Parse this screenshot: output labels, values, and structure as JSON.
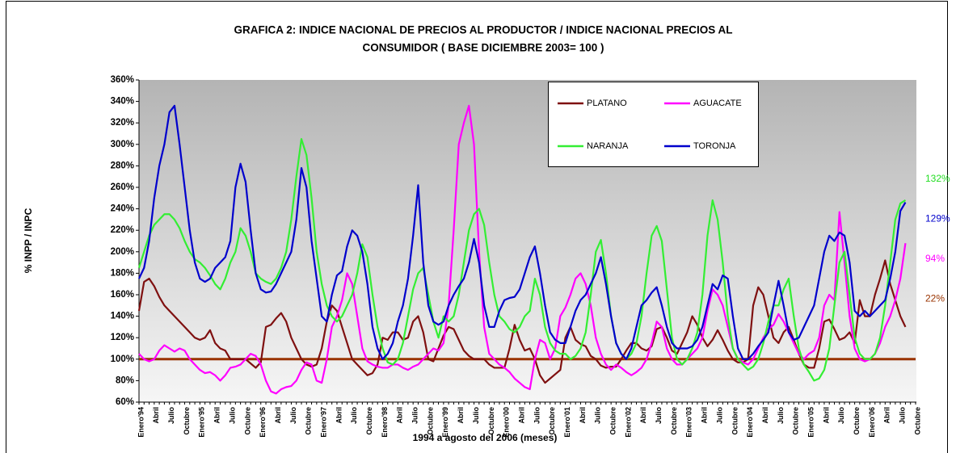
{
  "chart_data": {
    "type": "line",
    "title": [
      "GRAFICA 2: INDICE NACIONAL DE PRECIOS AL PRODUCTOR /  INDICE NACIONAL PRECIOS AL",
      "CONSUMIDOR ( BASE DICIEMBRE 2003= 100 )"
    ],
    "xlabel": "1994 a agosto del 2006 (meses)",
    "ylabel": "% INPP / INPC",
    "ylim": [
      60,
      360
    ],
    "yticks": [
      {
        "value": 60,
        "label": "60%"
      },
      {
        "value": 80,
        "label": "80%"
      },
      {
        "value": 100,
        "label": "100%"
      },
      {
        "value": 120,
        "label": "120%"
      },
      {
        "value": 140,
        "label": "140%"
      },
      {
        "value": 160,
        "label": "160%"
      },
      {
        "value": 180,
        "label": "180%"
      },
      {
        "value": 200,
        "label": "200%"
      },
      {
        "value": 220,
        "label": "220%"
      },
      {
        "value": 240,
        "label": "240%"
      },
      {
        "value": 260,
        "label": "260%"
      },
      {
        "value": 280,
        "label": "280%"
      },
      {
        "value": 300,
        "label": "300%"
      },
      {
        "value": 320,
        "label": "320%"
      },
      {
        "value": 340,
        "label": "340%"
      },
      {
        "value": 360,
        "label": "360%"
      }
    ],
    "categories": [
      "Enero'94",
      null,
      null,
      "Abril",
      null,
      null,
      "Julio",
      null,
      null,
      "Octubre",
      null,
      null,
      "Enero'95",
      null,
      null,
      "Abril",
      null,
      null,
      "Julio",
      null,
      null,
      "Octubre",
      null,
      null,
      "Enero'96",
      null,
      null,
      "Abril",
      null,
      null,
      "Julio",
      null,
      null,
      "Octubre",
      null,
      null,
      "Enero'97",
      null,
      null,
      "Abril",
      null,
      null,
      "Julio",
      null,
      null,
      "Octubre",
      null,
      null,
      "Enero'98",
      null,
      null,
      "Abril",
      null,
      null,
      "Julio",
      null,
      null,
      "Octubre",
      null,
      null,
      "Enero'99",
      null,
      null,
      "Abril",
      null,
      null,
      "Julio",
      null,
      null,
      "Octubre",
      null,
      null,
      "Enero'00",
      null,
      null,
      "Abril",
      null,
      null,
      "Julio",
      null,
      null,
      "Octubre",
      null,
      null,
      "Enero'01",
      null,
      null,
      "Abril",
      null,
      null,
      "Julio",
      null,
      null,
      "Octubre",
      null,
      null,
      "Enero'02",
      null,
      null,
      "Abril",
      null,
      null,
      "Julio",
      null,
      null,
      "Octubre",
      null,
      null,
      "Enero'03",
      null,
      null,
      "Abril",
      null,
      null,
      "Julio",
      null,
      null,
      "Octubre",
      null,
      null,
      "Enero'04",
      null,
      null,
      "Abril",
      null,
      null,
      "Julio",
      null,
      null,
      "Octubre",
      null,
      null,
      "Enero'05",
      null,
      null,
      "Abril",
      null,
      null,
      "Julio",
      null,
      null,
      "Octubre",
      null,
      null,
      "Enero'06",
      null,
      null,
      "Abril",
      null,
      null,
      "Julio",
      null,
      null,
      "Octubre"
    ],
    "series": [
      {
        "name": "PLATANO",
        "color": "#7f1010",
        "values": [
          145,
          172,
          175,
          168,
          158,
          150,
          145,
          140,
          135,
          130,
          125,
          120,
          118,
          120,
          127,
          115,
          110,
          108,
          100,
          100,
          100,
          100,
          96,
          92,
          97,
          130,
          132,
          138,
          143,
          135,
          120,
          110,
          100,
          95,
          93,
          95,
          110,
          135,
          150,
          145,
          130,
          115,
          100,
          95,
          90,
          85,
          87,
          95,
          120,
          118,
          125,
          125,
          118,
          120,
          135,
          140,
          125,
          100,
          98,
          110,
          122,
          130,
          128,
          118,
          108,
          103,
          100,
          100,
          100,
          95,
          92,
          92,
          92,
          110,
          132,
          118,
          108,
          110,
          100,
          85,
          78,
          82,
          86,
          90,
          120,
          130,
          118,
          114,
          112,
          103,
          100,
          94,
          92,
          93,
          93,
          100,
          108,
          115,
          115,
          110,
          108,
          112,
          128,
          130,
          120,
          108,
          105,
          115,
          125,
          140,
          132,
          120,
          112,
          118,
          127,
          118,
          108,
          100,
          97,
          97,
          100,
          150,
          167,
          160,
          140,
          120,
          115,
          125,
          130,
          118,
          105,
          95,
          92,
          92,
          110,
          135,
          137,
          128,
          118,
          120,
          125,
          115,
          155,
          140,
          140,
          160,
          175,
          192,
          170,
          155,
          140,
          130,
          null,
          null
        ]
      },
      {
        "name": "AGUACATE",
        "color": "#ff00ff",
        "values": [
          105,
          100,
          98,
          100,
          108,
          113,
          110,
          107,
          110,
          108,
          100,
          95,
          90,
          87,
          88,
          85,
          80,
          85,
          92,
          93,
          95,
          100,
          105,
          103,
          95,
          80,
          70,
          68,
          72,
          74,
          75,
          80,
          90,
          97,
          95,
          80,
          78,
          100,
          130,
          140,
          155,
          180,
          170,
          140,
          110,
          98,
          95,
          93,
          92,
          92,
          95,
          95,
          92,
          90,
          93,
          95,
          100,
          105,
          110,
          108,
          115,
          150,
          220,
          300,
          320,
          336,
          300,
          200,
          130,
          105,
          100,
          95,
          92,
          88,
          82,
          78,
          74,
          72,
          100,
          118,
          115,
          100,
          110,
          140,
          148,
          160,
          175,
          180,
          170,
          150,
          120,
          105,
          95,
          90,
          95,
          92,
          88,
          85,
          88,
          92,
          100,
          115,
          135,
          130,
          110,
          100,
          95,
          95,
          100,
          105,
          110,
          120,
          145,
          165,
          160,
          150,
          130,
          110,
          100,
          97,
          95,
          100,
          110,
          120,
          128,
          132,
          142,
          135,
          125,
          115,
          105,
          100,
          105,
          108,
          120,
          150,
          160,
          155,
          237,
          190,
          140,
          110,
          100,
          98,
          100,
          105,
          115,
          130,
          140,
          155,
          175,
          208,
          null,
          null
        ]
      },
      {
        "name": "NARANJA",
        "color": "#33ee33",
        "values": [
          185,
          200,
          215,
          225,
          230,
          235,
          235,
          230,
          222,
          210,
          200,
          193,
          190,
          185,
          178,
          170,
          165,
          175,
          190,
          200,
          222,
          215,
          200,
          180,
          175,
          172,
          170,
          175,
          185,
          200,
          230,
          270,
          305,
          290,
          250,
          200,
          170,
          150,
          140,
          135,
          140,
          150,
          160,
          180,
          207,
          195,
          160,
          130,
          110,
          97,
          95,
          100,
          115,
          140,
          165,
          180,
          185,
          160,
          135,
          120,
          140,
          135,
          140,
          160,
          190,
          220,
          235,
          240,
          225,
          190,
          160,
          140,
          135,
          128,
          125,
          130,
          140,
          145,
          175,
          160,
          130,
          115,
          108,
          105,
          105,
          100,
          103,
          110,
          125,
          160,
          200,
          211,
          180,
          140,
          115,
          105,
          100,
          105,
          115,
          140,
          180,
          215,
          224,
          210,
          165,
          120,
          100,
          95,
          100,
          110,
          125,
          160,
          215,
          248,
          230,
          190,
          140,
          110,
          100,
          95,
          90,
          93,
          100,
          115,
          135,
          150,
          150,
          165,
          175,
          140,
          110,
          95,
          88,
          80,
          82,
          90,
          110,
          150,
          190,
          200,
          160,
          120,
          105,
          100,
          100,
          105,
          120,
          150,
          190,
          230,
          245,
          248,
          null,
          null
        ]
      },
      {
        "name": "TORONJA",
        "color": "#0000cc",
        "values": [
          175,
          185,
          210,
          250,
          280,
          300,
          330,
          336,
          300,
          260,
          220,
          190,
          175,
          172,
          175,
          185,
          190,
          195,
          210,
          260,
          282,
          265,
          220,
          180,
          165,
          162,
          163,
          170,
          180,
          190,
          200,
          230,
          278,
          260,
          210,
          175,
          140,
          135,
          160,
          178,
          182,
          205,
          220,
          215,
          200,
          170,
          130,
          110,
          100,
          105,
          115,
          135,
          150,
          175,
          215,
          262,
          190,
          150,
          135,
          132,
          135,
          150,
          160,
          168,
          175,
          190,
          212,
          190,
          150,
          130,
          130,
          145,
          155,
          157,
          158,
          165,
          180,
          195,
          205,
          180,
          150,
          125,
          118,
          115,
          115,
          130,
          145,
          155,
          160,
          170,
          180,
          195,
          170,
          140,
          115,
          105,
          100,
          110,
          130,
          150,
          155,
          162,
          167,
          150,
          130,
          115,
          110,
          110,
          110,
          112,
          118,
          130,
          150,
          170,
          165,
          178,
          175,
          140,
          110,
          100,
          100,
          105,
          112,
          118,
          125,
          150,
          173,
          150,
          125,
          118,
          120,
          130,
          140,
          150,
          175,
          200,
          215,
          210,
          218,
          215,
          190,
          145,
          140,
          145,
          140,
          145,
          150,
          155,
          175,
          200,
          238,
          246,
          null,
          null
        ]
      }
    ],
    "reference_line": {
      "value": 100,
      "color": "#993300"
    },
    "annotations": [
      {
        "text": "132%",
        "color": "#22dd22"
      },
      {
        "text": "129%",
        "color": "#0000cc"
      },
      {
        "text": "94%",
        "color": "#ff00ff"
      },
      {
        "text": "22%",
        "color": "#993300"
      }
    ]
  }
}
